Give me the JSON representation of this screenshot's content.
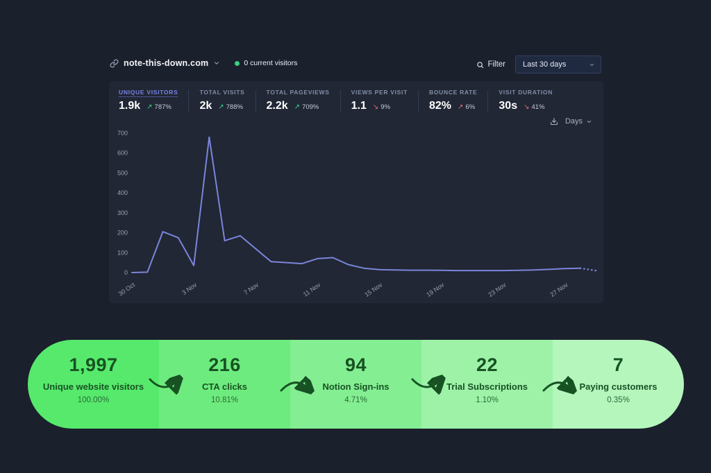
{
  "header": {
    "site": "note-this-down.com",
    "current_visitors": "0 current visitors",
    "filter_label": "Filter",
    "date_range": "Last 30 days"
  },
  "stats": [
    {
      "label": "UNIQUE VISITORS",
      "value": "1.9k",
      "arrow": "↗",
      "change": "787%",
      "direction": "up",
      "trend": "positive",
      "active": true
    },
    {
      "label": "TOTAL VISITS",
      "value": "2k",
      "arrow": "↗",
      "change": "788%",
      "direction": "up",
      "trend": "positive",
      "active": false
    },
    {
      "label": "TOTAL PAGEVIEWS",
      "value": "2.2k",
      "arrow": "↗",
      "change": "709%",
      "direction": "up",
      "trend": "positive",
      "active": false
    },
    {
      "label": "VIEWS PER VISIT",
      "value": "1.1",
      "arrow": "↘",
      "change": "9%",
      "direction": "down",
      "trend": "negative",
      "active": false
    },
    {
      "label": "BOUNCE RATE",
      "value": "82%",
      "arrow": "↗",
      "change": "6%",
      "direction": "up",
      "trend": "negative",
      "active": false
    },
    {
      "label": "VISIT DURATION",
      "value": "30s",
      "arrow": "↘",
      "change": "41%",
      "direction": "down",
      "trend": "negative",
      "active": false
    }
  ],
  "chart_controls": {
    "interval": "Days",
    "download_icon": "download-icon"
  },
  "chart_data": {
    "type": "line",
    "title": "Unique visitors per day, last 30 days",
    "x": [
      "30 Oct",
      "31 Oct",
      "1 Nov",
      "2 Nov",
      "3 Nov",
      "4 Nov",
      "5 Nov",
      "6 Nov",
      "7 Nov",
      "8 Nov",
      "9 Nov",
      "10 Nov",
      "11 Nov",
      "12 Nov",
      "13 Nov",
      "14 Nov",
      "15 Nov",
      "16 Nov",
      "17 Nov",
      "18 Nov",
      "19 Nov",
      "20 Nov",
      "21 Nov",
      "22 Nov",
      "23 Nov",
      "24 Nov",
      "25 Nov",
      "26 Nov",
      "27 Nov",
      "28 Nov",
      "29 Nov"
    ],
    "values": [
      0,
      2,
      205,
      175,
      35,
      680,
      160,
      185,
      120,
      55,
      50,
      45,
      70,
      75,
      40,
      22,
      15,
      13,
      12,
      12,
      11,
      10,
      10,
      10,
      10,
      11,
      13,
      16,
      20,
      22,
      10
    ],
    "tick_indices": [
      0,
      4,
      8,
      12,
      16,
      20,
      24,
      28
    ],
    "tick_labels": [
      "30 Oct",
      "3 Nov",
      "7 Nov",
      "11 Nov",
      "15 Nov",
      "19 Nov",
      "23 Nov",
      "27 Nov"
    ],
    "ylim": [
      0,
      700
    ],
    "y_ticks": [
      0,
      100,
      200,
      300,
      400,
      500,
      600,
      700
    ],
    "grid": false,
    "legend": false,
    "line_color": "#7b85dc",
    "dashed_from_index": 29
  },
  "funnel": {
    "stages": [
      {
        "count": "1,997",
        "label": "Unique website visitors",
        "percent": "100.00%",
        "color": "#57e96c"
      },
      {
        "count": "216",
        "label": "CTA clicks",
        "percent": "10.81%",
        "color": "#6eeb7e"
      },
      {
        "count": "94",
        "label": "Notion Sign-ins",
        "percent": "4.71%",
        "color": "#84ee92"
      },
      {
        "count": "22",
        "label": "Trial Subscriptions",
        "percent": "1.10%",
        "color": "#9df2a7"
      },
      {
        "count": "7",
        "label": "Paying customers",
        "percent": "0.35%",
        "color": "#b5f6bd"
      }
    ],
    "arrow_color": "#175223"
  },
  "colors": {
    "page_bg": "#1b202d",
    "panel_bg": "#212734",
    "accent_active": "#7a82e8",
    "positive": "#3fd68f",
    "negative": "#ee6a78",
    "chart_line": "#7b85dc",
    "funnel_text": "#175223",
    "current_dot": "#3ad07e"
  }
}
